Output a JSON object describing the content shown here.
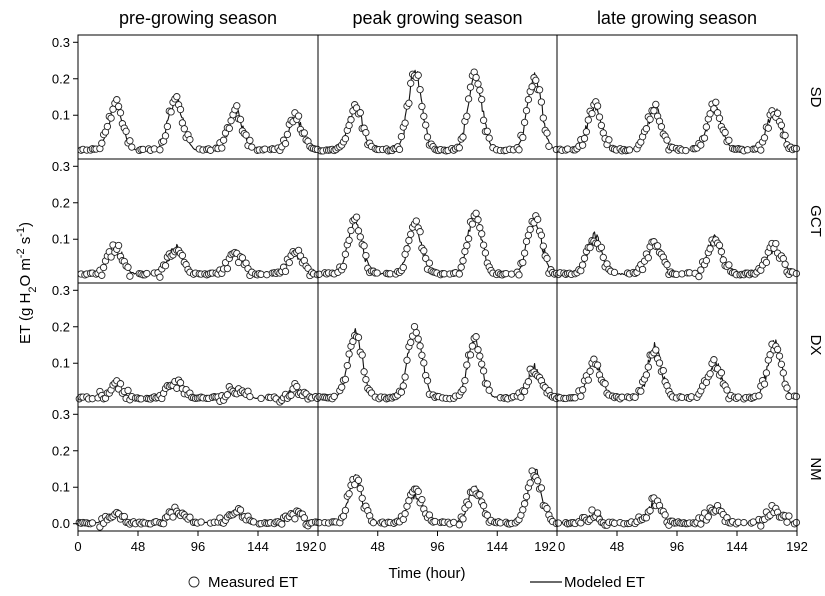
{
  "chart_data": {
    "type": "line",
    "columns": [
      "pre-growing season",
      "peak growing season",
      "late growing season"
    ],
    "rows": [
      "SD",
      "GCT",
      "DX",
      "NM"
    ],
    "x_axis": {
      "label": "Time (hour)",
      "range": [
        0,
        192
      ],
      "ticks": [
        0,
        48,
        96,
        144,
        192
      ]
    },
    "y_axis": {
      "label_parts": [
        "ET (g H",
        "2",
        "O m",
        "-2",
        " s",
        "-1",
        ")"
      ],
      "range": [
        -0.02,
        0.32
      ],
      "ticks_top_rows": [
        "0.1",
        "0.2",
        "0.3"
      ],
      "ticks_bottom_row": [
        "0.0",
        "0.1",
        "0.2",
        "0.3"
      ]
    },
    "series": [
      {
        "name": "Measured ET",
        "marker": "open-circle"
      },
      {
        "name": "Modeled ET",
        "marker": "line"
      }
    ],
    "panels": [
      {
        "row": "SD",
        "column": "pre-growing season",
        "baseline": 0.005,
        "peaks": [
          {
            "t": 30,
            "v": 0.13
          },
          {
            "t": 78,
            "v": 0.145
          },
          {
            "t": 126,
            "v": 0.115
          },
          {
            "t": 174,
            "v": 0.095
          }
        ]
      },
      {
        "row": "SD",
        "column": "peak growing season",
        "baseline": 0.005,
        "peaks": [
          {
            "t": 30,
            "v": 0.12
          },
          {
            "t": 78,
            "v": 0.22
          },
          {
            "t": 126,
            "v": 0.22
          },
          {
            "t": 174,
            "v": 0.2
          }
        ]
      },
      {
        "row": "SD",
        "column": "late growing season",
        "baseline": 0.005,
        "peaks": [
          {
            "t": 30,
            "v": 0.125
          },
          {
            "t": 78,
            "v": 0.12
          },
          {
            "t": 126,
            "v": 0.125
          },
          {
            "t": 174,
            "v": 0.11
          }
        ]
      },
      {
        "row": "GCT",
        "column": "pre-growing season",
        "baseline": 0.005,
        "peaks": [
          {
            "t": 30,
            "v": 0.075
          },
          {
            "t": 78,
            "v": 0.075
          },
          {
            "t": 126,
            "v": 0.055
          },
          {
            "t": 174,
            "v": 0.065
          }
        ]
      },
      {
        "row": "GCT",
        "column": "peak growing season",
        "baseline": 0.005,
        "peaks": [
          {
            "t": 30,
            "v": 0.15
          },
          {
            "t": 78,
            "v": 0.14
          },
          {
            "t": 126,
            "v": 0.165
          },
          {
            "t": 174,
            "v": 0.155
          }
        ]
      },
      {
        "row": "GCT",
        "column": "late growing season",
        "baseline": 0.005,
        "peaks": [
          {
            "t": 30,
            "v": 0.105
          },
          {
            "t": 78,
            "v": 0.09
          },
          {
            "t": 126,
            "v": 0.105
          },
          {
            "t": 174,
            "v": 0.08
          }
        ]
      },
      {
        "row": "DX",
        "column": "pre-growing season",
        "baseline": 0.005,
        "peaks": [
          {
            "t": 30,
            "v": 0.04
          },
          {
            "t": 78,
            "v": 0.045
          },
          {
            "t": 126,
            "v": 0.03
          },
          {
            "t": 174,
            "v": 0.03
          }
        ]
      },
      {
        "row": "DX",
        "column": "peak growing season",
        "baseline": 0.005,
        "peaks": [
          {
            "t": 30,
            "v": 0.18
          },
          {
            "t": 78,
            "v": 0.2
          },
          {
            "t": 126,
            "v": 0.165
          },
          {
            "t": 174,
            "v": 0.085
          }
        ]
      },
      {
        "row": "DX",
        "column": "late growing season",
        "baseline": 0.005,
        "peaks": [
          {
            "t": 30,
            "v": 0.1
          },
          {
            "t": 78,
            "v": 0.14
          },
          {
            "t": 126,
            "v": 0.1
          },
          {
            "t": 174,
            "v": 0.15
          }
        ]
      },
      {
        "row": "NM",
        "column": "pre-growing season",
        "baseline": 0.002,
        "peaks": [
          {
            "t": 30,
            "v": 0.03
          },
          {
            "t": 78,
            "v": 0.035
          },
          {
            "t": 126,
            "v": 0.03
          },
          {
            "t": 174,
            "v": 0.025
          }
        ]
      },
      {
        "row": "NM",
        "column": "peak growing season",
        "baseline": 0.002,
        "peaks": [
          {
            "t": 30,
            "v": 0.12
          },
          {
            "t": 78,
            "v": 0.085
          },
          {
            "t": 126,
            "v": 0.09
          },
          {
            "t": 174,
            "v": 0.14
          }
        ]
      },
      {
        "row": "NM",
        "column": "late growing season",
        "baseline": 0.002,
        "peaks": [
          {
            "t": 30,
            "v": 0.025
          },
          {
            "t": 78,
            "v": 0.06
          },
          {
            "t": 126,
            "v": 0.045
          },
          {
            "t": 174,
            "v": 0.04
          }
        ]
      }
    ]
  }
}
